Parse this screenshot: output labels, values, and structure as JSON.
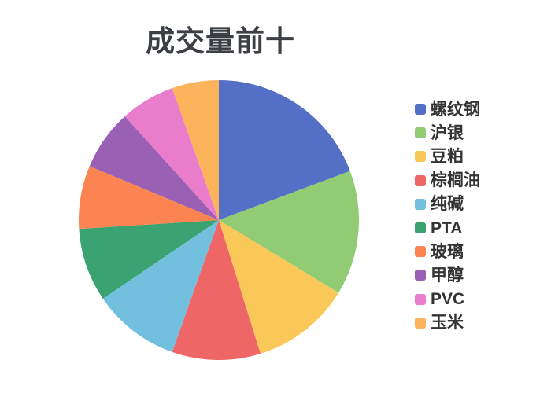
{
  "title": "成交量前十",
  "colors": {
    "background": "#ffffff",
    "title_text": "#3c4045",
    "legend_text": "#333333"
  },
  "chart_data": {
    "type": "pie",
    "title": "成交量前十",
    "legend_position": "right",
    "start_angle_deg": 0,
    "direction": "clockwise",
    "value_unit": "percent",
    "series": [
      {
        "label": "螺纹钢",
        "value": 19.3,
        "color": "#5470c6"
      },
      {
        "label": "沪银",
        "value": 14.4,
        "color": "#91cc75"
      },
      {
        "label": "豆粕",
        "value": 11.5,
        "color": "#fac858"
      },
      {
        "label": "棕榈油",
        "value": 10.2,
        "color": "#ee6666"
      },
      {
        "label": "纯碱",
        "value": 10.1,
        "color": "#73c0de"
      },
      {
        "label": "PTA",
        "value": 8.5,
        "color": "#3ba272"
      },
      {
        "label": "玻璃",
        "value": 7.3,
        "color": "#fc8452"
      },
      {
        "label": "甲醇",
        "value": 7.0,
        "color": "#9a60b4"
      },
      {
        "label": "PVC",
        "value": 6.3,
        "color": "#ea7ccc"
      },
      {
        "label": "玉米",
        "value": 5.4,
        "color": "#fbb45c"
      }
    ]
  }
}
